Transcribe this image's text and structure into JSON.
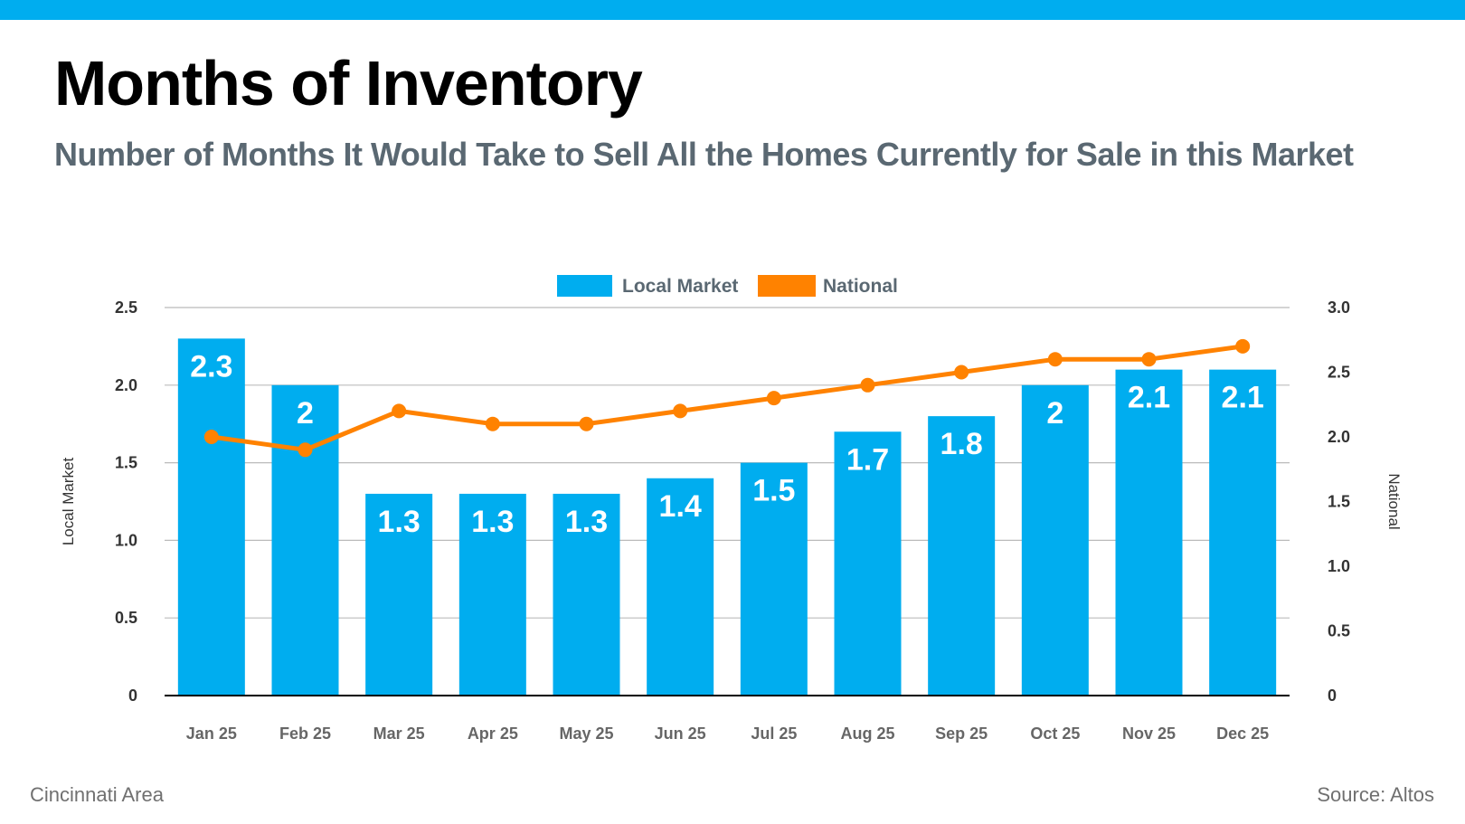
{
  "header": {
    "title": "Months of Inventory",
    "subtitle": "Number of Months It Would Take to Sell All the Homes Currently for Sale in this Market"
  },
  "footer": {
    "region": "Cincinnati Area",
    "source": "Source: Altos"
  },
  "colors": {
    "accent": "#00adef",
    "local_bar": "#00adef",
    "national_line": "#ff8200",
    "title": "#000000",
    "subtitle": "#5a6872",
    "grid": "#bbbbbb",
    "axis_text": "#333333"
  },
  "chart_data": {
    "type": "bar",
    "categories": [
      "Jan 25",
      "Feb 25",
      "Mar 25",
      "Apr 25",
      "May 25",
      "Jun 25",
      "Jul 25",
      "Aug 25",
      "Sep 25",
      "Oct 25",
      "Nov 25",
      "Dec 25"
    ],
    "series": [
      {
        "name": "Local Market",
        "type": "bar",
        "axis": "left",
        "values": [
          2.3,
          2,
          1.3,
          1.3,
          1.3,
          1.4,
          1.5,
          1.7,
          1.8,
          2,
          2.1,
          2.1
        ],
        "labels": [
          "2.3",
          "2",
          "1.3",
          "1.3",
          "1.3",
          "1.4",
          "1.5",
          "1.7",
          "1.8",
          "2",
          "2.1",
          "2.1"
        ]
      },
      {
        "name": "National",
        "type": "line",
        "axis": "right",
        "values": [
          2.0,
          1.9,
          2.2,
          2.1,
          2.1,
          2.2,
          2.3,
          2.4,
          2.5,
          2.6,
          2.6,
          2.7
        ]
      }
    ],
    "y_left": {
      "label": "Local Market",
      "range": [
        0,
        2.5
      ],
      "ticks": [
        0,
        0.5,
        1.0,
        1.5,
        2.0,
        2.5
      ],
      "tick_labels": [
        "0",
        "0.5",
        "1.0",
        "1.5",
        "2.0",
        "2.5"
      ]
    },
    "y_right": {
      "label": "National",
      "range": [
        0,
        3.0
      ],
      "ticks": [
        0,
        0.5,
        1.0,
        1.5,
        2.0,
        2.5,
        3.0
      ],
      "tick_labels": [
        "0",
        "0.5",
        "1.0",
        "1.5",
        "2.0",
        "2.5",
        "3.0"
      ]
    },
    "grid": true,
    "legend_position": "top-center"
  }
}
